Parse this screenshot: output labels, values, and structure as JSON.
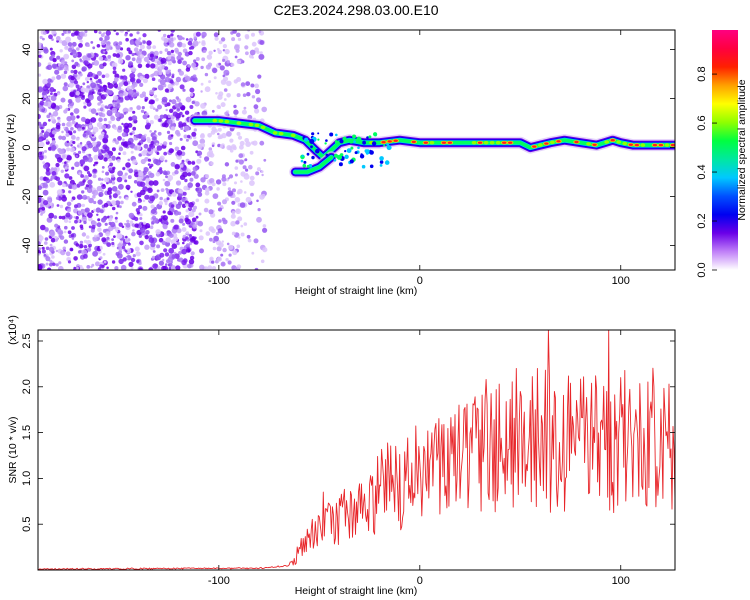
{
  "title": "C2E3.2024.298.03.00.E10",
  "chart_data": [
    {
      "type": "heatmap",
      "panel": "spectrogram",
      "xlabel": "Height of straight line (km)",
      "ylabel": "Frequency (Hz)",
      "xlim": [
        -190,
        127
      ],
      "ylim": [
        -50,
        48
      ],
      "xticks": [
        -100,
        0,
        100
      ],
      "yticks": [
        -40,
        -20,
        0,
        20,
        40
      ],
      "colorbar": {
        "label": "Normalized spectral amplitude",
        "range": [
          0,
          0.98
        ],
        "ticks": [
          0.0,
          0.2,
          0.4,
          0.6,
          0.8
        ],
        "colormap": [
          "#ffffff",
          "#c080f8",
          "#6a00e8",
          "#0000f0",
          "#0050ff",
          "#00c8ff",
          "#00e8a0",
          "#00ff40",
          "#90ff00",
          "#ffff00",
          "#ffa000",
          "#ff2000",
          "#ff0040",
          "#ff0080"
        ]
      },
      "noise_region": {
        "x_from": -190,
        "x_to": -77
      },
      "ridge": [
        {
          "x": -112,
          "y": 11
        },
        {
          "x": -100,
          "y": 11
        },
        {
          "x": -90,
          "y": 10
        },
        {
          "x": -80,
          "y": 9
        },
        {
          "x": -72,
          "y": 6
        },
        {
          "x": -63,
          "y": 5
        },
        {
          "x": -57,
          "y": 3
        },
        {
          "x": -52,
          "y": -1
        },
        {
          "x": -48,
          "y": -4
        },
        {
          "x": -44,
          "y": -1
        },
        {
          "x": -40,
          "y": 2
        },
        {
          "x": -35,
          "y": 3
        },
        {
          "x": -28,
          "y": 2
        },
        {
          "x": -20,
          "y": 2
        },
        {
          "x": -10,
          "y": 3
        },
        {
          "x": 0,
          "y": 2
        },
        {
          "x": 10,
          "y": 2
        },
        {
          "x": 20,
          "y": 2
        },
        {
          "x": 30,
          "y": 2
        },
        {
          "x": 40,
          "y": 2
        },
        {
          "x": 50,
          "y": 2
        },
        {
          "x": 55,
          "y": 0
        },
        {
          "x": 60,
          "y": 1
        },
        {
          "x": 65,
          "y": 2
        },
        {
          "x": 72,
          "y": 3
        },
        {
          "x": 80,
          "y": 2
        },
        {
          "x": 88,
          "y": 1
        },
        {
          "x": 92,
          "y": 2
        },
        {
          "x": 96,
          "y": 3
        },
        {
          "x": 100,
          "y": 2
        },
        {
          "x": 106,
          "y": 1
        },
        {
          "x": 112,
          "y": 1
        },
        {
          "x": 118,
          "y": 1
        },
        {
          "x": 127,
          "y": 1
        }
      ],
      "secondary_branch": [
        {
          "x": -62,
          "y": -10
        },
        {
          "x": -56,
          "y": -10
        },
        {
          "x": -50,
          "y": -8
        },
        {
          "x": -44,
          "y": -4
        }
      ]
    },
    {
      "type": "line",
      "panel": "snr",
      "xlabel": "Height of straight line (km)",
      "ylabel": "SNR (10 * v/v)",
      "y_multiplier": "(x10⁴)",
      "xlim": [
        -190,
        127
      ],
      "ylim": [
        0,
        2.62
      ],
      "xticks": [
        -100,
        0,
        100
      ],
      "yticks": [
        0.5,
        1.0,
        1.5,
        2.0,
        2.5
      ],
      "color": "#e8262a",
      "envelope": [
        {
          "x": -190,
          "y": 0.01
        },
        {
          "x": -80,
          "y": 0.02
        },
        {
          "x": -65,
          "y": 0.05
        },
        {
          "x": -58,
          "y": 0.25
        },
        {
          "x": -50,
          "y": 0.45
        },
        {
          "x": -40,
          "y": 0.55
        },
        {
          "x": -30,
          "y": 0.7
        },
        {
          "x": -20,
          "y": 0.85
        },
        {
          "x": -10,
          "y": 0.95
        },
        {
          "x": 0,
          "y": 1.05
        },
        {
          "x": 15,
          "y": 1.15
        },
        {
          "x": 30,
          "y": 1.25
        },
        {
          "x": 50,
          "y": 1.35
        },
        {
          "x": 70,
          "y": 1.4
        },
        {
          "x": 90,
          "y": 1.4
        },
        {
          "x": 110,
          "y": 1.35
        },
        {
          "x": 127,
          "y": 1.35
        }
      ],
      "spikes": [
        {
          "x": -48,
          "y": 0.85
        },
        {
          "x": -40,
          "y": 0.78
        },
        {
          "x": -12,
          "y": 1.35
        },
        {
          "x": 8,
          "y": 1.6
        },
        {
          "x": 22,
          "y": 1.75
        },
        {
          "x": 33,
          "y": 2.08
        },
        {
          "x": 48,
          "y": 2.2
        },
        {
          "x": 55,
          "y": 1.85
        },
        {
          "x": 64,
          "y": 2.62
        },
        {
          "x": 78,
          "y": 1.85
        },
        {
          "x": 94,
          "y": 2.62
        },
        {
          "x": 100,
          "y": 2.1
        },
        {
          "x": 108,
          "y": 1.62
        },
        {
          "x": 122,
          "y": 1.7
        }
      ]
    }
  ]
}
